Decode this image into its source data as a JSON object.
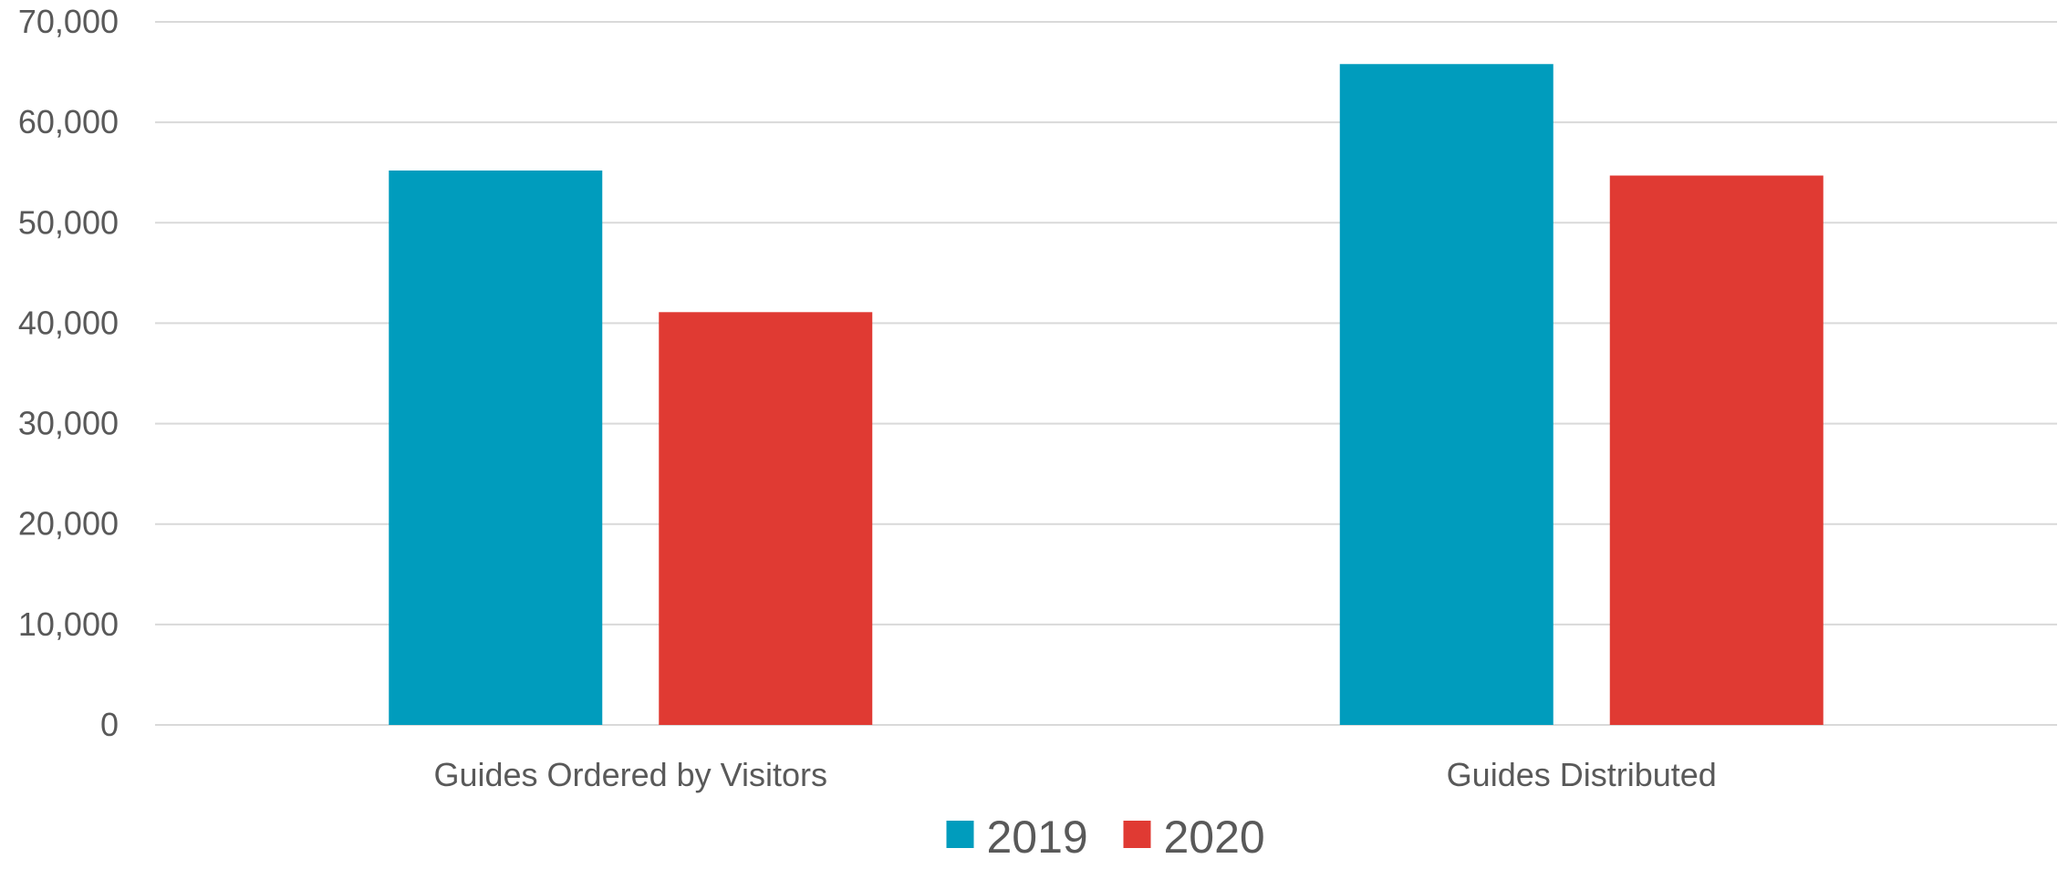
{
  "chart_data": {
    "type": "bar",
    "categories": [
      "Guides Ordered by Visitors",
      "Guides Distributed"
    ],
    "series": [
      {
        "name": "2019",
        "values": [
          55200,
          65800
        ],
        "color": "#009cbd"
      },
      {
        "name": "2020",
        "values": [
          41100,
          54700
        ],
        "color": "#e03a33"
      }
    ],
    "y_ticks": [
      "0",
      "10,000",
      "20,000",
      "30,000",
      "40,000",
      "50,000",
      "60,000",
      "70,000"
    ],
    "ylim": [
      0,
      70000
    ],
    "y_step": 10000,
    "grid": true,
    "legend_position": "bottom"
  }
}
